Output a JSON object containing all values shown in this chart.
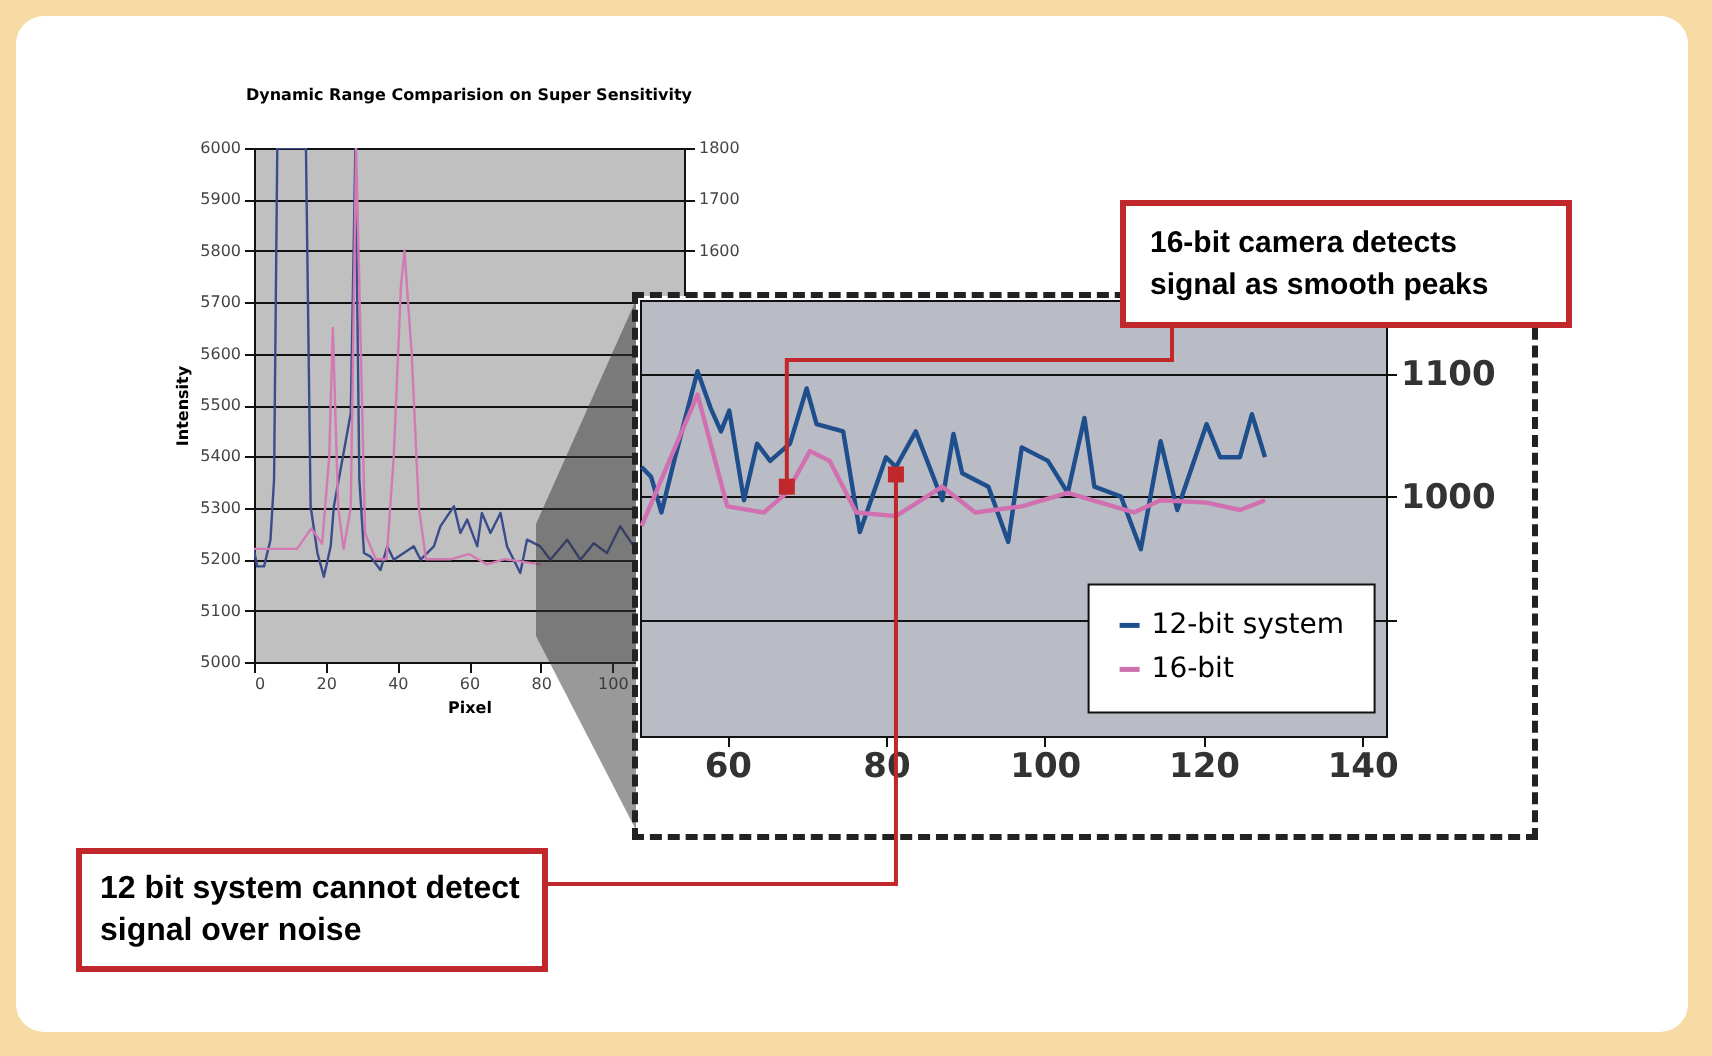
{
  "chart_data": [
    {
      "type": "line",
      "title": "Dynamic Range Comparision on Super Sensitivity",
      "xlabel": "Pixel",
      "ylabel": "Intensity",
      "xlim": [
        0,
        120
      ],
      "xticks": [
        0,
        20,
        40,
        60,
        80,
        100
      ],
      "ylim": [
        5000,
        6000
      ],
      "yticks": [
        5000,
        5100,
        5200,
        5300,
        5400,
        5500,
        5600,
        5700,
        5800,
        5900,
        6000
      ],
      "y2lim": [
        800,
        1800
      ],
      "y2ticks": [
        1600,
        1700,
        1800
      ],
      "grid": "y",
      "series": [
        {
          "color": "#3a4c8c",
          "x": [
            0,
            0.9,
            2.8,
            4.6,
            5.6,
            6.5,
            14.5,
            15.8,
            17.7,
            19.5,
            21.4,
            22.3,
            27,
            28.3,
            29.4,
            30.7,
            32.5,
            35.3,
            37.2,
            39,
            44.6,
            46.5,
            50.2,
            52,
            55.8,
            57.6,
            59.5,
            62.3,
            63.6,
            66,
            68.8,
            70.6,
            74.3,
            76.2,
            79.9,
            82.7,
            87.4,
            91.1,
            94.8,
            98.5,
            102.2,
            106
          ],
          "values": [
            5218,
            5186,
            5186,
            5238,
            5355,
            6000,
            6000,
            5303,
            5212,
            5166,
            5225,
            5303,
            5484,
            6000,
            5355,
            5212,
            5205,
            5179,
            5225,
            5199,
            5225,
            5199,
            5225,
            5264,
            5303,
            5251,
            5277,
            5225,
            5290,
            5251,
            5290,
            5225,
            5173,
            5238,
            5225,
            5199,
            5238,
            5199,
            5231,
            5212,
            5264,
            5225
          ]
        },
        {
          "color": "#d27ab4",
          "axis": "y2",
          "x": [
            0,
            12,
            16,
            19,
            21,
            22,
            23.5,
            25,
            27,
            28.5,
            31,
            34,
            37,
            39,
            41,
            42,
            44,
            46,
            48,
            55,
            60,
            65,
            70,
            80
          ],
          "values": [
            1020,
            1020,
            1060,
            1030,
            1200,
            1450,
            1100,
            1020,
            1100,
            1800,
            1050,
            1000,
            1000,
            1200,
            1530,
            1600,
            1400,
            1100,
            1000,
            1000,
            1010,
            990,
            1000,
            990
          ]
        }
      ]
    },
    {
      "type": "line",
      "xlim": [
        49,
        143
      ],
      "xticks": [
        60,
        80,
        100,
        120,
        140
      ],
      "ylim": [
        805,
        1160
      ],
      "yticks": [
        {
          "value": 900,
          "label": null
        },
        1000,
        1100
      ],
      "grid": "y",
      "legend": "bottom right",
      "annotations": [
        {
          "text": "16-bit camera detects signal as smooth peaks",
          "x": 67.5,
          "y": 1008
        },
        {
          "text": "12 bit system cannot detect signal over noise",
          "x": 81.25,
          "y": 1018
        }
      ],
      "series": [
        {
          "name": "12-bit system",
          "color": "#1f4e8c",
          "x": [
            49.2,
            50.4,
            51.7,
            53.3,
            56.25,
            57.9,
            59.2,
            60.25,
            62.1,
            63.75,
            65.4,
            67.9,
            70,
            71.25,
            74.6,
            76.7,
            80,
            81.25,
            83.75,
            87.1,
            88.5,
            89.6,
            92.9,
            95.4,
            97.1,
            100.4,
            102.9,
            105,
            106.25,
            109.6,
            112.1,
            114.6,
            116.7,
            120.4,
            122.1,
            124.6,
            126.1,
            127.75
          ],
          "values": [
            1024,
            1016,
            987,
            1029,
            1102,
            1072,
            1053,
            1070,
            997,
            1043,
            1029,
            1043,
            1088,
            1059,
            1053,
            971,
            1032,
            1024,
            1053,
            997,
            1051,
            1019,
            1008,
            963,
            1040,
            1029,
            1003,
            1064,
            1008,
            1000,
            957,
            1045,
            989,
            1059,
            1032,
            1032,
            1067,
            1032
          ]
        },
        {
          "name": "16-bit",
          "color": "#d070b0",
          "x": [
            49.2,
            56.25,
            60,
            64.6,
            67.5,
            70.4,
            72.9,
            76.25,
            81.25,
            87.1,
            91.25,
            97.1,
            102.9,
            111.25,
            114.6,
            120.4,
            124.6,
            127.75
          ],
          "values": [
            976,
            1083,
            992,
            987,
            1003,
            1037,
            1029,
            987,
            984,
            1008,
            987,
            992,
            1003,
            987,
            997,
            995,
            989,
            997
          ]
        }
      ]
    }
  ]
}
